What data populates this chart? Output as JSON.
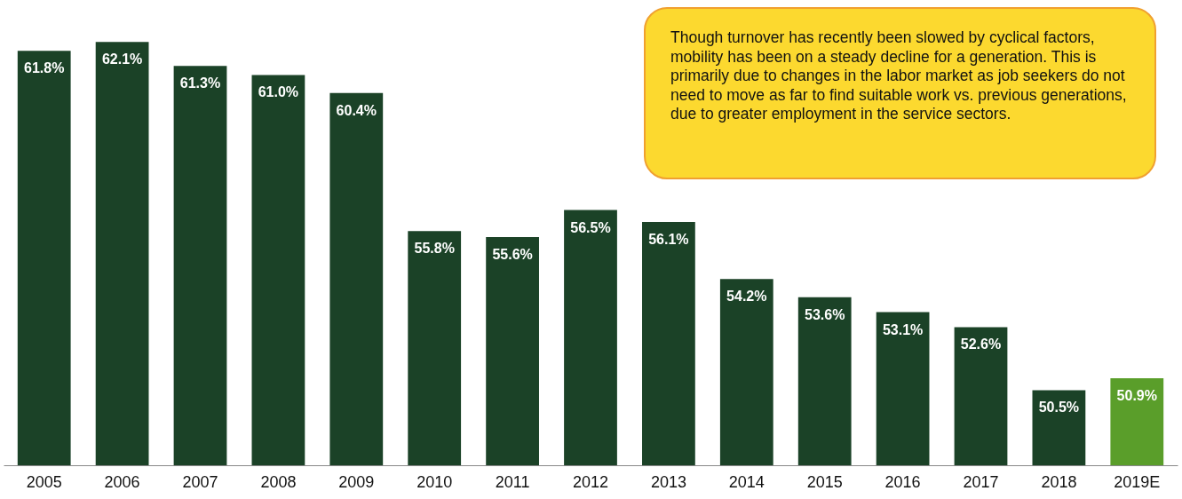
{
  "chart_data": {
    "type": "bar",
    "categories": [
      "2005",
      "2006",
      "2007",
      "2008",
      "2009",
      "2010",
      "2011",
      "2012",
      "2013",
      "2014",
      "2015",
      "2016",
      "2017",
      "2018",
      "2019E"
    ],
    "values": [
      61.8,
      62.1,
      61.3,
      61.0,
      60.4,
      55.8,
      55.6,
      56.5,
      56.1,
      54.2,
      53.6,
      53.1,
      52.6,
      50.5,
      50.9
    ],
    "value_labels": [
      "61.8%",
      "62.1%",
      "61.3%",
      "61.0%",
      "60.4%",
      "55.8%",
      "55.6%",
      "56.5%",
      "56.1%",
      "54.2%",
      "53.6%",
      "53.1%",
      "52.6%",
      "50.5%",
      "50.9%"
    ],
    "colors": [
      "#1b4227",
      "#1b4227",
      "#1b4227",
      "#1b4227",
      "#1b4227",
      "#1b4227",
      "#1b4227",
      "#1b4227",
      "#1b4227",
      "#1b4227",
      "#1b4227",
      "#1b4227",
      "#1b4227",
      "#1b4227",
      "#5a9e2a"
    ],
    "ylim": [
      48,
      63.2
    ],
    "annotations": [
      "Though turnover has recently been slowed by cyclical factors, mobility has been on a steady decline for a generation. This is primarily due to changes in the labor market as job seekers do not need to move as far to find suitable work vs. previous generations, due to greater employment in the service sectors."
    ]
  }
}
